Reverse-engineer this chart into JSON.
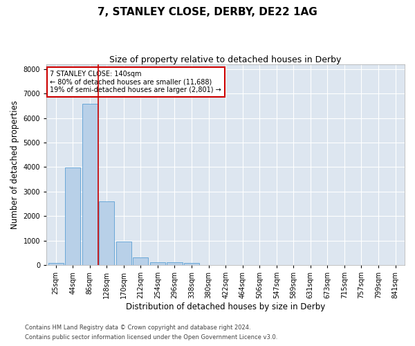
{
  "title": "7, STANLEY CLOSE, DERBY, DE22 1AG",
  "subtitle": "Size of property relative to detached houses in Derby",
  "xlabel": "Distribution of detached houses by size in Derby",
  "ylabel": "Number of detached properties",
  "bin_labels": [
    "25sqm",
    "44sqm",
    "86sqm",
    "128sqm",
    "170sqm",
    "212sqm",
    "254sqm",
    "296sqm",
    "338sqm",
    "380sqm",
    "422sqm",
    "464sqm",
    "506sqm",
    "547sqm",
    "589sqm",
    "631sqm",
    "673sqm",
    "715sqm",
    "757sqm",
    "799sqm",
    "841sqm"
  ],
  "bar_heights": [
    70,
    3980,
    6580,
    2600,
    950,
    305,
    120,
    100,
    70,
    0,
    0,
    0,
    0,
    0,
    0,
    0,
    0,
    0,
    0,
    0,
    0
  ],
  "bar_color": "#b8d0e8",
  "bar_edge_color": "#5a9fd4",
  "vline_color": "#cc0000",
  "annotation_text": "7 STANLEY CLOSE: 140sqm\n← 80% of detached houses are smaller (11,688)\n19% of semi-detached houses are larger (2,801) →",
  "annotation_box_color": "#cc0000",
  "plot_bg_color": "#dde6f0",
  "ylim": [
    0,
    8200
  ],
  "yticks": [
    0,
    1000,
    2000,
    3000,
    4000,
    5000,
    6000,
    7000,
    8000
  ],
  "footer1": "Contains HM Land Registry data © Crown copyright and database right 2024.",
  "footer2": "Contains public sector information licensed under the Open Government Licence v3.0.",
  "title_fontsize": 11,
  "subtitle_fontsize": 9,
  "axis_label_fontsize": 8.5,
  "tick_fontsize": 7,
  "footer_fontsize": 6
}
